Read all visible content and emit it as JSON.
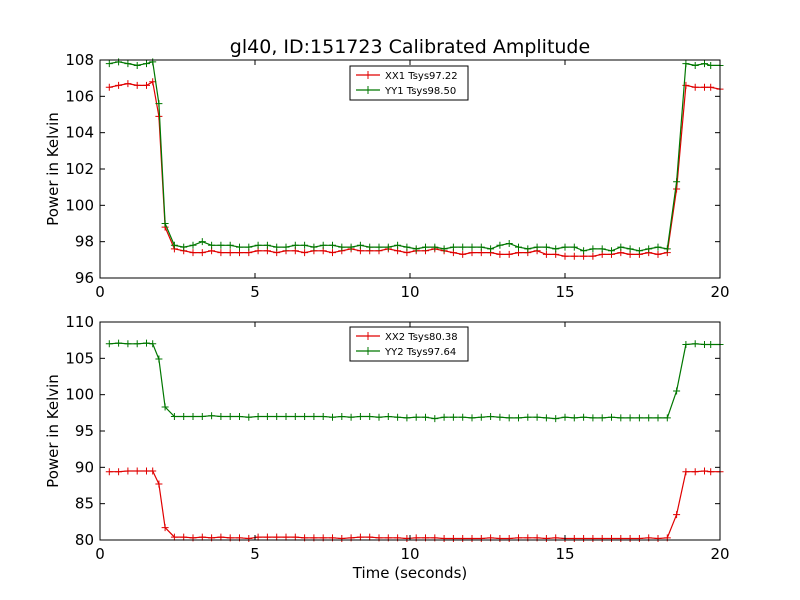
{
  "figure_title": "gl40, ID:151723 Calibrated Amplitude",
  "xlabel": "Time (seconds)",
  "chart_data": [
    {
      "type": "line",
      "title": "gl40, ID:151723 Calibrated Amplitude",
      "xlabel": "",
      "ylabel": "Power in Kelvin",
      "xlim": [
        0,
        20
      ],
      "ylim": [
        96,
        108
      ],
      "xticks": [
        0,
        5,
        10,
        15,
        20
      ],
      "yticks": [
        96,
        98,
        100,
        102,
        104,
        106,
        108
      ],
      "legend": "top-center",
      "x": [
        0.3,
        0.6,
        0.9,
        1.2,
        1.5,
        1.7,
        1.9,
        2.1,
        2.4,
        2.7,
        3.0,
        3.3,
        3.6,
        3.9,
        4.2,
        4.5,
        4.8,
        5.1,
        5.4,
        5.7,
        6.0,
        6.3,
        6.6,
        6.9,
        7.2,
        7.5,
        7.8,
        8.1,
        8.4,
        8.7,
        9.0,
        9.3,
        9.6,
        9.9,
        10.2,
        10.5,
        10.8,
        11.1,
        11.4,
        11.7,
        12.0,
        12.3,
        12.6,
        12.9,
        13.2,
        13.5,
        13.8,
        14.1,
        14.4,
        14.7,
        15.0,
        15.3,
        15.6,
        15.9,
        16.2,
        16.5,
        16.8,
        17.1,
        17.4,
        17.7,
        18.0,
        18.3,
        18.6,
        18.9,
        19.2,
        19.5,
        19.7,
        20.0
      ],
      "series": [
        {
          "name": "XX1 Tsys97.22",
          "color": "#e00000",
          "values": [
            106.5,
            106.6,
            106.7,
            106.6,
            106.6,
            106.8,
            104.9,
            98.8,
            97.6,
            97.5,
            97.4,
            97.4,
            97.5,
            97.4,
            97.4,
            97.4,
            97.4,
            97.5,
            97.5,
            97.4,
            97.5,
            97.5,
            97.4,
            97.5,
            97.5,
            97.4,
            97.5,
            97.6,
            97.5,
            97.5,
            97.5,
            97.6,
            97.5,
            97.4,
            97.5,
            97.5,
            97.6,
            97.5,
            97.4,
            97.3,
            97.4,
            97.4,
            97.4,
            97.3,
            97.3,
            97.4,
            97.4,
            97.5,
            97.3,
            97.3,
            97.2,
            97.2,
            97.2,
            97.2,
            97.3,
            97.3,
            97.4,
            97.3,
            97.3,
            97.4,
            97.3,
            97.4,
            100.9,
            106.6,
            106.5,
            106.5,
            106.5,
            106.4
          ]
        },
        {
          "name": "YY1 Tsys98.50",
          "color": "#007700",
          "values": [
            107.8,
            107.9,
            107.8,
            107.7,
            107.8,
            107.9,
            105.6,
            99.0,
            97.8,
            97.7,
            97.8,
            98.0,
            97.8,
            97.8,
            97.8,
            97.7,
            97.7,
            97.8,
            97.8,
            97.7,
            97.7,
            97.8,
            97.8,
            97.7,
            97.8,
            97.8,
            97.7,
            97.7,
            97.8,
            97.7,
            97.7,
            97.7,
            97.8,
            97.7,
            97.6,
            97.7,
            97.7,
            97.6,
            97.7,
            97.7,
            97.7,
            97.7,
            97.6,
            97.8,
            97.9,
            97.7,
            97.6,
            97.7,
            97.7,
            97.6,
            97.7,
            97.7,
            97.5,
            97.6,
            97.6,
            97.5,
            97.7,
            97.6,
            97.5,
            97.6,
            97.7,
            97.6,
            101.3,
            107.8,
            107.7,
            107.8,
            107.7,
            107.7
          ]
        }
      ]
    },
    {
      "type": "line",
      "title": "",
      "xlabel": "Time (seconds)",
      "ylabel": "Power in Kelvin",
      "xlim": [
        0,
        20
      ],
      "ylim": [
        80,
        110
      ],
      "xticks": [
        0,
        5,
        10,
        15,
        20
      ],
      "yticks": [
        80,
        85,
        90,
        95,
        100,
        105,
        110
      ],
      "legend": "top-center",
      "x": [
        0.3,
        0.6,
        0.9,
        1.2,
        1.5,
        1.7,
        1.9,
        2.1,
        2.4,
        2.7,
        3.0,
        3.3,
        3.6,
        3.9,
        4.2,
        4.5,
        4.8,
        5.1,
        5.4,
        5.7,
        6.0,
        6.3,
        6.6,
        6.9,
        7.2,
        7.5,
        7.8,
        8.1,
        8.4,
        8.7,
        9.0,
        9.3,
        9.6,
        9.9,
        10.2,
        10.5,
        10.8,
        11.1,
        11.4,
        11.7,
        12.0,
        12.3,
        12.6,
        12.9,
        13.2,
        13.5,
        13.8,
        14.1,
        14.4,
        14.7,
        15.0,
        15.3,
        15.6,
        15.9,
        16.2,
        16.5,
        16.8,
        17.1,
        17.4,
        17.7,
        18.0,
        18.3,
        18.6,
        18.9,
        19.2,
        19.5,
        19.7,
        20.0
      ],
      "series": [
        {
          "name": "XX2 Tsys80.38",
          "color": "#e00000",
          "values": [
            89.4,
            89.4,
            89.5,
            89.5,
            89.5,
            89.5,
            87.7,
            81.7,
            80.4,
            80.4,
            80.3,
            80.4,
            80.3,
            80.4,
            80.3,
            80.3,
            80.2,
            80.4,
            80.4,
            80.4,
            80.4,
            80.4,
            80.3,
            80.3,
            80.3,
            80.3,
            80.2,
            80.3,
            80.4,
            80.4,
            80.3,
            80.3,
            80.3,
            80.2,
            80.3,
            80.3,
            80.3,
            80.2,
            80.2,
            80.2,
            80.2,
            80.2,
            80.3,
            80.2,
            80.2,
            80.3,
            80.3,
            80.3,
            80.2,
            80.3,
            80.2,
            80.2,
            80.2,
            80.2,
            80.2,
            80.2,
            80.2,
            80.2,
            80.2,
            80.3,
            80.2,
            80.3,
            83.5,
            89.4,
            89.4,
            89.5,
            89.4,
            89.4
          ]
        },
        {
          "name": "YY2 Tsys97.64",
          "color": "#007700",
          "values": [
            107.0,
            107.1,
            107.0,
            107.0,
            107.1,
            107.0,
            104.9,
            98.3,
            97.0,
            97.0,
            97.0,
            97.0,
            97.1,
            97.0,
            97.0,
            97.0,
            96.9,
            97.0,
            97.0,
            97.0,
            97.0,
            97.0,
            97.0,
            97.0,
            97.0,
            96.9,
            97.0,
            96.9,
            97.0,
            97.0,
            96.9,
            97.0,
            96.9,
            96.8,
            96.9,
            96.9,
            96.7,
            96.9,
            96.9,
            96.9,
            96.8,
            96.9,
            97.0,
            96.9,
            96.8,
            96.8,
            96.9,
            96.9,
            96.8,
            96.7,
            96.9,
            96.8,
            96.9,
            96.8,
            96.8,
            96.9,
            96.8,
            96.8,
            96.8,
            96.8,
            96.8,
            96.8,
            100.5,
            106.9,
            107.0,
            106.9,
            106.9,
            106.9
          ]
        }
      ]
    }
  ]
}
